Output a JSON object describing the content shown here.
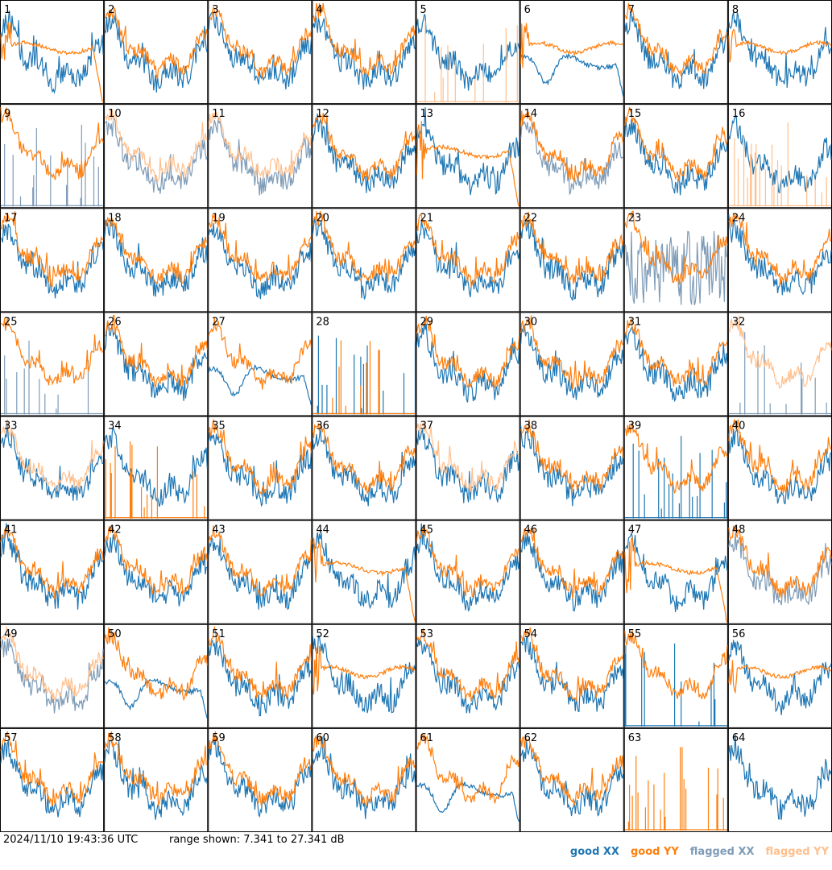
{
  "footer": {
    "timestamp": "2024/11/10 19:43:36 UTC",
    "range_text": "range shown: 7.341 to 27.341 dB"
  },
  "legend": {
    "good_xx": "good XX",
    "good_yy": "good YY",
    "flagged_xx": "flagged XX",
    "flagged_yy": "flagged YY"
  },
  "colors": {
    "good_xx": "#1f77b4",
    "good_yy": "#ff7f0e",
    "flagged_xx": "#7f9cb8",
    "flagged_yy": "#ffbf8c",
    "grid": "#000000"
  },
  "chart_data": {
    "type": "line",
    "layout": "8x8 small multiples",
    "ylim_db": [
      7.341,
      27.341
    ],
    "panels": [
      {
        "label": "1",
        "xx": "good",
        "yy": "good",
        "yy_shape": "dropout"
      },
      {
        "label": "2",
        "xx": "good",
        "yy": "good",
        "yy_shape": "normal"
      },
      {
        "label": "3",
        "xx": "good",
        "yy": "good",
        "yy_shape": "normal"
      },
      {
        "label": "4",
        "xx": "good",
        "yy": "good",
        "yy_shape": "normal"
      },
      {
        "label": "5",
        "xx": "good",
        "yy": "flagged",
        "yy_shape": "spiky"
      },
      {
        "label": "6",
        "xx": "good",
        "yy": "good",
        "yy_shape": "flat",
        "xx_shape": "dip"
      },
      {
        "label": "7",
        "xx": "good",
        "yy": "good",
        "yy_shape": "normal"
      },
      {
        "label": "8",
        "xx": "good",
        "yy": "good",
        "yy_shape": "flat"
      },
      {
        "label": "9",
        "xx": "flagged",
        "yy": "good",
        "xx_shape": "spiky"
      },
      {
        "label": "10",
        "xx": "flagged",
        "yy": "flagged"
      },
      {
        "label": "11",
        "xx": "flagged",
        "yy": "flagged"
      },
      {
        "label": "12",
        "xx": "good",
        "yy": "good"
      },
      {
        "label": "13",
        "xx": "good",
        "yy": "good",
        "yy_shape": "dropout"
      },
      {
        "label": "14",
        "xx": "flagged",
        "yy": "good"
      },
      {
        "label": "15",
        "xx": "good",
        "yy": "good"
      },
      {
        "label": "16",
        "xx": "good",
        "yy": "flagged",
        "yy_shape": "spiky"
      },
      {
        "label": "17",
        "xx": "good",
        "yy": "good"
      },
      {
        "label": "18",
        "xx": "good",
        "yy": "good"
      },
      {
        "label": "19",
        "xx": "good",
        "yy": "good"
      },
      {
        "label": "20",
        "xx": "good",
        "yy": "good"
      },
      {
        "label": "21",
        "xx": "good",
        "yy": "good"
      },
      {
        "label": "22",
        "xx": "good",
        "yy": "good"
      },
      {
        "label": "23",
        "xx": "flagged",
        "yy": "good",
        "xx_shape": "noisy"
      },
      {
        "label": "24",
        "xx": "good",
        "yy": "good"
      },
      {
        "label": "25",
        "xx": "flagged",
        "yy": "good",
        "xx_shape": "spiky"
      },
      {
        "label": "26",
        "xx": "good",
        "yy": "good"
      },
      {
        "label": "27",
        "xx": "good",
        "yy": "good",
        "xx_shape": "dip"
      },
      {
        "label": "28",
        "xx": "good",
        "yy": "good",
        "xx_shape": "spiky",
        "yy_shape": "spiky"
      },
      {
        "label": "29",
        "xx": "good",
        "yy": "good"
      },
      {
        "label": "30",
        "xx": "good",
        "yy": "good"
      },
      {
        "label": "31",
        "xx": "good",
        "yy": "good"
      },
      {
        "label": "32",
        "xx": "flagged",
        "yy": "flagged",
        "xx_shape": "spiky"
      },
      {
        "label": "33",
        "xx": "good",
        "yy": "flagged"
      },
      {
        "label": "34",
        "xx": "good",
        "yy": "good",
        "yy_shape": "spiky"
      },
      {
        "label": "35",
        "xx": "good",
        "yy": "good"
      },
      {
        "label": "36",
        "xx": "good",
        "yy": "good"
      },
      {
        "label": "37",
        "xx": "good",
        "yy": "flagged"
      },
      {
        "label": "38",
        "xx": "good",
        "yy": "good"
      },
      {
        "label": "39",
        "xx": "good",
        "yy": "good",
        "xx_shape": "spiky"
      },
      {
        "label": "40",
        "xx": "good",
        "yy": "good"
      },
      {
        "label": "41",
        "xx": "good",
        "yy": "good"
      },
      {
        "label": "42",
        "xx": "good",
        "yy": "good"
      },
      {
        "label": "43",
        "xx": "good",
        "yy": "good"
      },
      {
        "label": "44",
        "xx": "good",
        "yy": "good",
        "yy_shape": "dropout"
      },
      {
        "label": "45",
        "xx": "good",
        "yy": "good"
      },
      {
        "label": "46",
        "xx": "good",
        "yy": "good"
      },
      {
        "label": "47",
        "xx": "good",
        "yy": "good",
        "yy_shape": "dropout"
      },
      {
        "label": "48",
        "xx": "flagged",
        "yy": "good"
      },
      {
        "label": "49",
        "xx": "flagged",
        "yy": "flagged"
      },
      {
        "label": "50",
        "xx": "good",
        "yy": "good",
        "xx_shape": "dip"
      },
      {
        "label": "51",
        "xx": "good",
        "yy": "good"
      },
      {
        "label": "52",
        "xx": "good",
        "yy": "good",
        "yy_shape": "flat"
      },
      {
        "label": "53",
        "xx": "good",
        "yy": "good"
      },
      {
        "label": "54",
        "xx": "good",
        "yy": "good"
      },
      {
        "label": "55",
        "xx": "good",
        "yy": "good",
        "xx_shape": "spiky"
      },
      {
        "label": "56",
        "xx": "good",
        "yy": "good",
        "yy_shape": "flat"
      },
      {
        "label": "57",
        "xx": "good",
        "yy": "good"
      },
      {
        "label": "58",
        "xx": "good",
        "yy": "good"
      },
      {
        "label": "59",
        "xx": "good",
        "yy": "good"
      },
      {
        "label": "60",
        "xx": "good",
        "yy": "good"
      },
      {
        "label": "61",
        "xx": "good",
        "yy": "good",
        "xx_shape": "dip"
      },
      {
        "label": "62",
        "xx": "good",
        "yy": "good"
      },
      {
        "label": "63",
        "xx": "good",
        "yy": "good",
        "yy_shape": "spiky",
        "xx_shape": "none"
      },
      {
        "label": "64",
        "xx": "good",
        "yy": "none"
      }
    ]
  }
}
